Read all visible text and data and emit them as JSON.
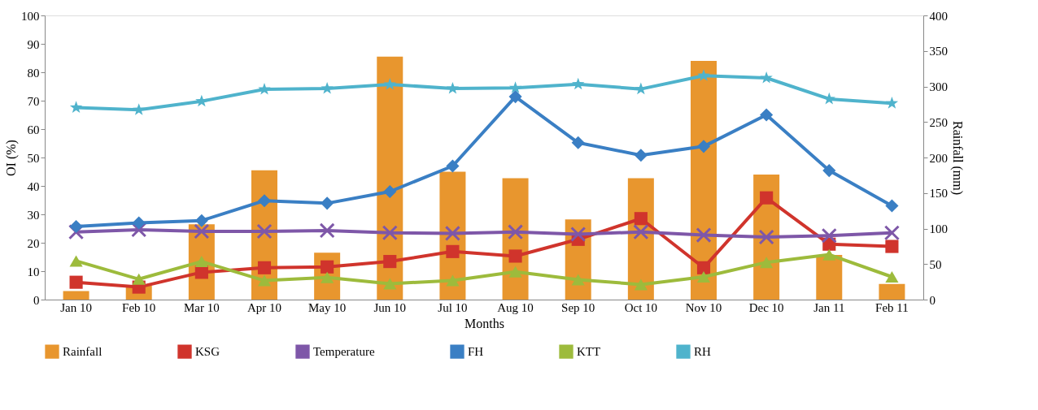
{
  "chart_data": {
    "type": "line",
    "xlabel": "Months",
    "ylabel": "OI (%)",
    "y2label": "Rainfall (mm)",
    "categories": [
      "Jan 10",
      "Feb 10",
      "Mar 10",
      "Apr 10",
      "May 10",
      "Jun 10",
      "Jul 10",
      "Aug 10",
      "Sep 10",
      "Oct 10",
      "Nov 10",
      "Dec 10",
      "Jan 11",
      "Feb 11"
    ],
    "series": [
      {
        "name": "Rainfall",
        "type": "bar",
        "axis": "y2",
        "color": "#e8962e",
        "values": [
          12,
          20,
          106,
          182,
          66,
          342,
          180,
          171,
          113,
          171,
          336,
          176,
          63,
          22
        ]
      },
      {
        "name": "KSG",
        "marker": "square",
        "color": "#d0342c",
        "values": [
          6.1,
          4.4,
          9.6,
          11.2,
          11.5,
          13.4,
          16.9,
          15.3,
          21.2,
          28.5,
          11.2,
          35.8,
          19.5,
          18.7
        ]
      },
      {
        "name": "Temperature",
        "marker": "cross",
        "color": "#7e57a8",
        "values": [
          23.8,
          24.6,
          24,
          24,
          24.3,
          23.5,
          23.3,
          23.8,
          23,
          23.8,
          22.7,
          22,
          22.5,
          23.5
        ]
      },
      {
        "name": "FH",
        "marker": "diamond",
        "color": "#3a7fc4",
        "values": [
          25.7,
          27,
          27.8,
          34.8,
          33.9,
          38,
          47,
          71.4,
          55.2,
          50.8,
          53.9,
          65,
          45.4,
          33
        ]
      },
      {
        "name": "KTT",
        "marker": "triangle",
        "color": "#9dbb3c",
        "values": [
          13.6,
          7.2,
          13.4,
          6.7,
          7.8,
          5.6,
          6.7,
          9.8,
          7,
          5.3,
          8,
          13.1,
          15.8,
          8
        ]
      },
      {
        "name": "RH",
        "marker": "star",
        "color": "#4fb3cc",
        "values": [
          67.6,
          66.8,
          69.8,
          74,
          74.3,
          75.7,
          74.3,
          74.5,
          75.8,
          74.1,
          78.8,
          78,
          70.6,
          69.1
        ]
      }
    ],
    "ylim": [
      0,
      100
    ],
    "yticks": [
      0,
      10,
      20,
      30,
      40,
      50,
      60,
      70,
      80,
      90,
      100
    ],
    "y2lim": [
      0,
      400
    ],
    "y2ticks": [
      0,
      50,
      100,
      150,
      200,
      250,
      300,
      350,
      400
    ],
    "grid": false,
    "legend": "bottom"
  }
}
